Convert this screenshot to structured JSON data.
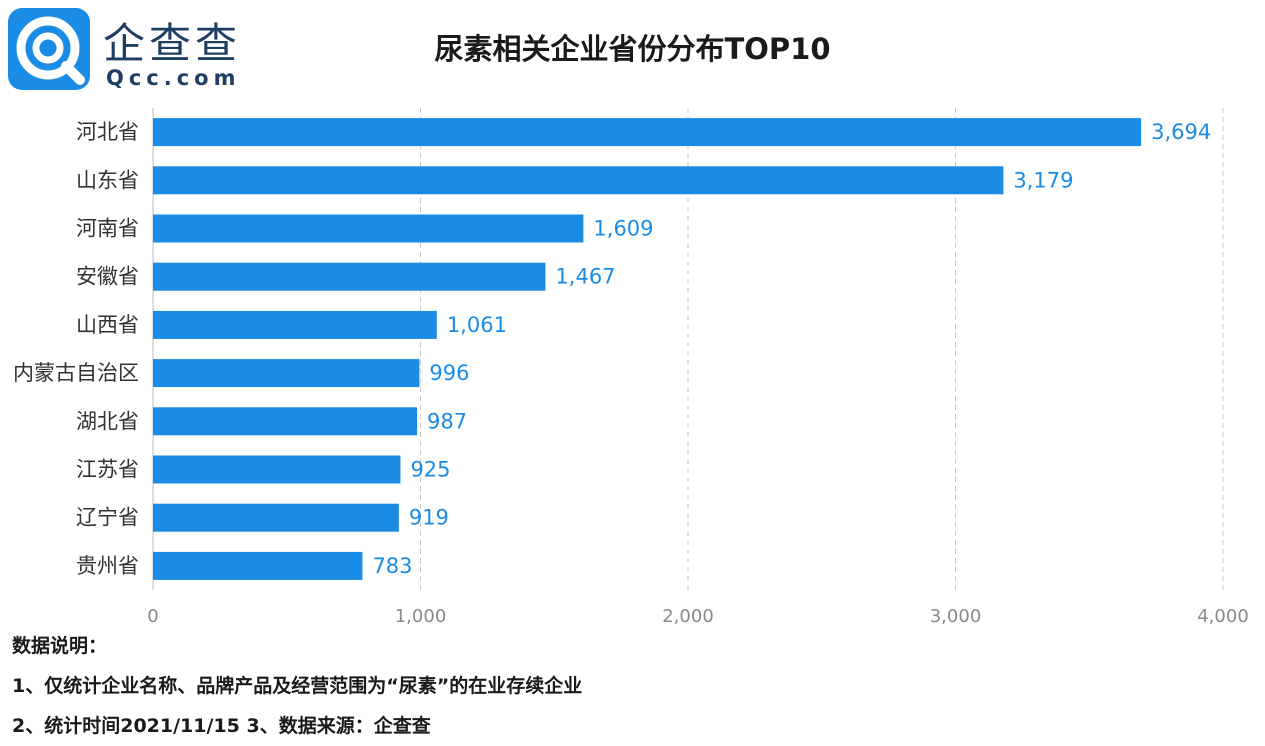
{
  "header": {
    "logo_cn": "企查查",
    "logo_en": "Qcc.com",
    "title": "尿素相关企业省份分布TOP10"
  },
  "notes": {
    "heading": "数据说明：",
    "line1": "1、仅统计企业名称、品牌产品及经营范围为“尿素”的在业存续企业",
    "line2": "2、统计时间2021/11/15  3、数据来源：企查查"
  },
  "colors": {
    "bar": "#1a8ce6",
    "value_label": "#1a8ce6",
    "grid": "#c8c8c8"
  },
  "chart_data": {
    "type": "bar",
    "orientation": "horizontal",
    "title": "尿素相关企业省份分布TOP10",
    "categories": [
      "河北省",
      "山东省",
      "河南省",
      "安徽省",
      "山西省",
      "内蒙古自治区",
      "湖北省",
      "江苏省",
      "辽宁省",
      "贵州省"
    ],
    "values": [
      3694,
      3179,
      1609,
      1467,
      1061,
      996,
      987,
      925,
      919,
      783
    ],
    "value_labels": [
      "3,694",
      "3,179",
      "1,609",
      "1,467",
      "1,061",
      "996",
      "987",
      "925",
      "919",
      "783"
    ],
    "xlim": [
      0,
      4000
    ],
    "xticks": [
      0,
      1000,
      2000,
      3000,
      4000
    ],
    "xtick_labels": [
      "0",
      "1,000",
      "2,000",
      "3,000",
      "4,000"
    ],
    "grid": "vertical dashed",
    "legend": "none"
  }
}
